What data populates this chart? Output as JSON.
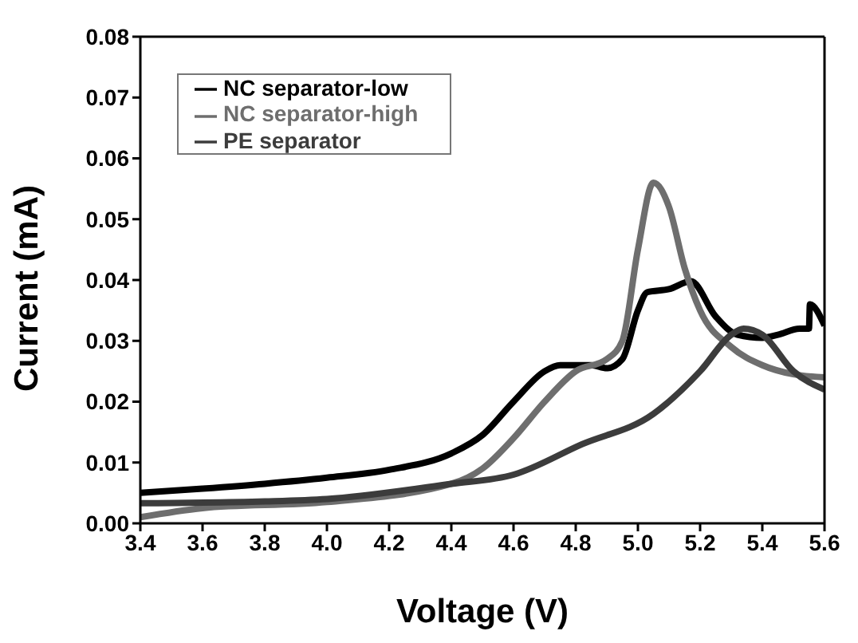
{
  "chart_data": {
    "type": "line",
    "xlabel": "Voltage (V)",
    "ylabel": "Current (mA)",
    "xlim": [
      3.4,
      5.6
    ],
    "xticks": [
      3.4,
      3.6,
      3.8,
      {
        "value": 4,
        "label": "4.0"
      },
      4.2,
      4.4,
      4.6,
      4.8,
      {
        "value": 5,
        "label": "5.0"
      },
      5.2,
      5.4,
      5.6
    ],
    "ylim": [
      0,
      0.08
    ],
    "yticks": [
      {
        "value": 0,
        "label": "0.00"
      },
      0.01,
      0.02,
      0.03,
      0.04,
      0.05,
      0.06,
      0.07,
      0.08
    ],
    "grid": false,
    "legend": "top left",
    "marker": "none",
    "line_style": "solid",
    "series": [
      {
        "name": "NC separator-low",
        "color": "#000000",
        "x": [
          3.4,
          3.6,
          3.8,
          4.0,
          4.2,
          4.4,
          4.5,
          4.6,
          4.7,
          4.75,
          4.85,
          4.9,
          4.95,
          5.0,
          5.03,
          5.1,
          5.17,
          5.25,
          5.32,
          5.4,
          5.45,
          5.52,
          5.55,
          5.553,
          5.6
        ],
        "values": [
          0.005,
          0.0057,
          0.0065,
          0.0075,
          0.0088,
          0.0115,
          0.0145,
          0.02,
          0.025,
          0.026,
          0.026,
          0.0255,
          0.027,
          0.035,
          0.038,
          0.0385,
          0.0398,
          0.034,
          0.031,
          0.0305,
          0.031,
          0.032,
          0.032,
          0.036,
          0.0325
        ]
      },
      {
        "name": "NC separator-high",
        "color": "#6e6e6e",
        "x": [
          3.4,
          3.6,
          4.0,
          4.4,
          4.5,
          4.6,
          4.7,
          4.8,
          4.9,
          4.95,
          5.0,
          5.05,
          5.1,
          5.15,
          5.2,
          5.3,
          5.4,
          5.5,
          5.6
        ],
        "values": [
          0.001,
          0.0025,
          0.0035,
          0.0065,
          0.009,
          0.014,
          0.02,
          0.025,
          0.027,
          0.03,
          0.045,
          0.056,
          0.052,
          0.042,
          0.035,
          0.029,
          0.026,
          0.0245,
          0.024
        ]
      },
      {
        "name": "PE separator",
        "color": "#3c3c3c",
        "x": [
          3.4,
          3.8,
          4.0,
          4.4,
          4.6,
          4.82,
          5.05,
          5.2,
          5.3,
          5.34,
          5.4,
          5.5,
          5.6
        ],
        "values": [
          0.0033,
          0.0036,
          0.004,
          0.0065,
          0.008,
          0.013,
          0.018,
          0.025,
          0.031,
          0.032,
          0.031,
          0.025,
          0.022
        ]
      }
    ]
  }
}
